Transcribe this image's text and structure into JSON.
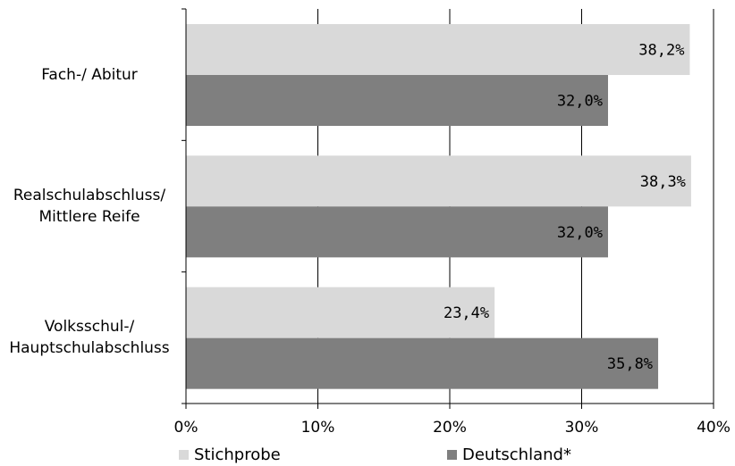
{
  "chart_data": {
    "type": "bar",
    "orientation": "horizontal",
    "categories": [
      "Fach-/ Abitur",
      "Realschulabschluss/ Mittlere Reife",
      "Volksschul-/ Hauptschulabschluss"
    ],
    "category_lines": [
      [
        "Fach-/ Abitur"
      ],
      [
        "Realschulabschluss/",
        "Mittlere Reife"
      ],
      [
        "Volksschul-/",
        "Hauptschulabschluss"
      ]
    ],
    "series": [
      {
        "name": "Stichprobe",
        "values": [
          38.2,
          38.3,
          23.4
        ],
        "labels": [
          "38,2%",
          "38,3%",
          "23,4%"
        ],
        "color": "#d9d9d9"
      },
      {
        "name": "Deutschland*",
        "values": [
          32.0,
          32.0,
          35.8
        ],
        "labels": [
          "32,0%",
          "32,0%",
          "35,8%"
        ],
        "color": "#7f7f7f"
      }
    ],
    "xlim": [
      0,
      40
    ],
    "xticks": [
      0,
      10,
      20,
      30,
      40
    ],
    "xtick_labels": [
      "0%",
      "10%",
      "20%",
      "30%",
      "40%"
    ],
    "grid": "vertical",
    "legend_position": "bottom"
  }
}
